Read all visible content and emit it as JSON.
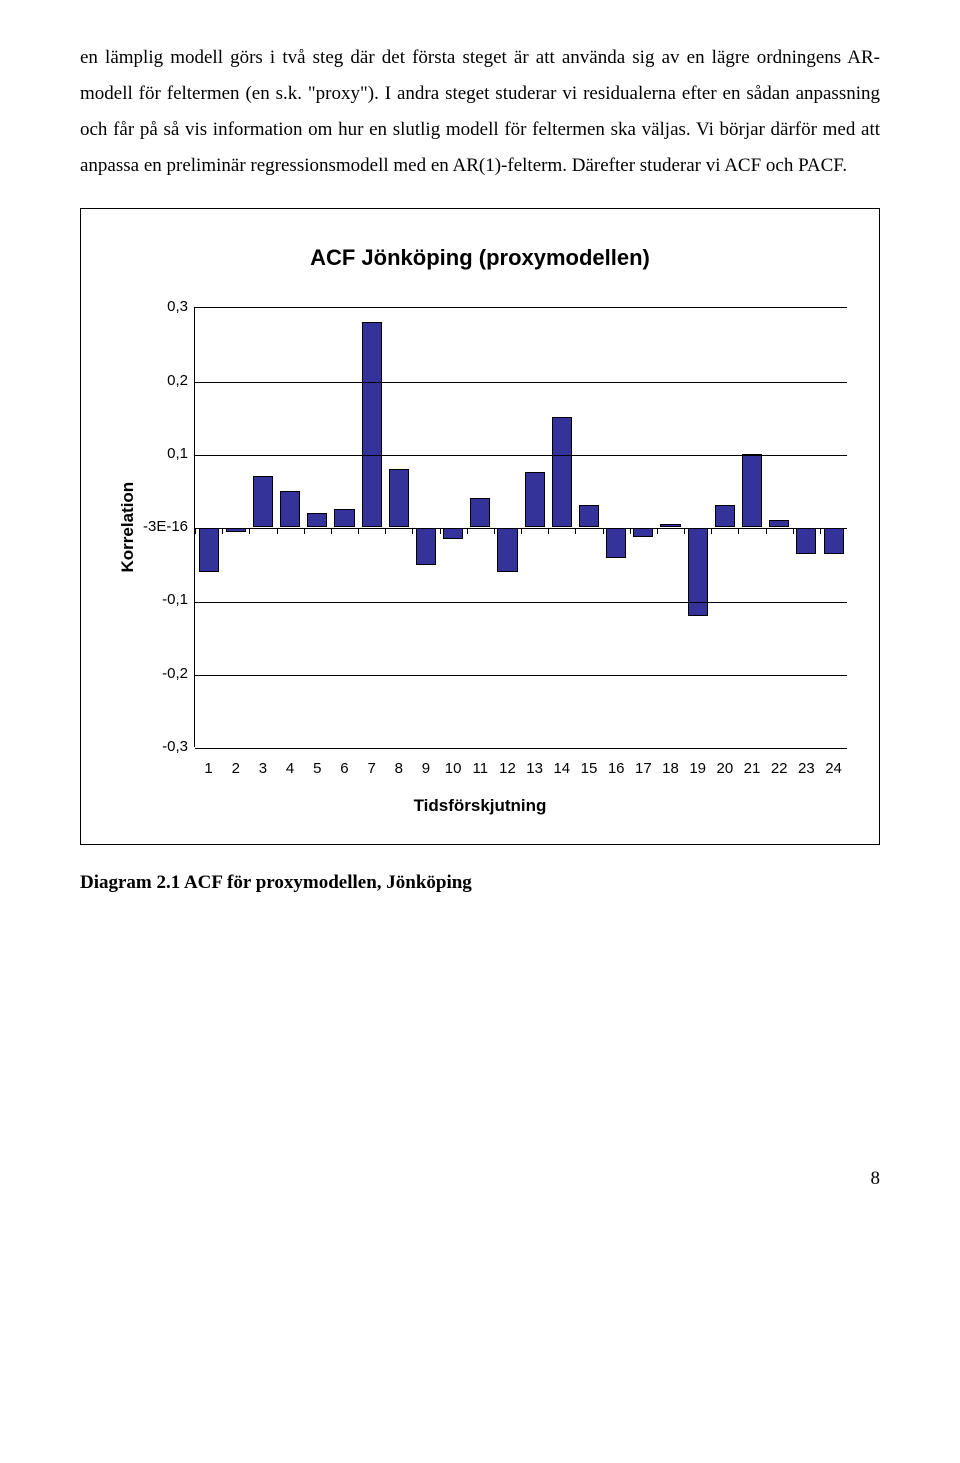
{
  "paragraphs": {
    "p1": "en lämplig modell görs i två steg där det första steget är att använda sig av en lägre ordningens AR-modell för feltermen (en s.k. \"proxy\"). I andra steget studerar vi residualerna efter en sådan anpassning och får på så vis information om hur en slutlig modell för feltermen ska väljas. Vi börjar därför med att anpassa en preliminär regressionsmodell med en AR(1)-felterm. Därefter studerar vi ACF och PACF."
  },
  "chart": {
    "type": "bar",
    "title": "ACF Jönköping (proxymodellen)",
    "xlabel": "Tidsförskjutning",
    "ylabel": "Korrelation",
    "ylim": [
      -0.3,
      0.3
    ],
    "ytick_step": 0.1,
    "yticks": [
      "0,3",
      "0,2",
      "0,1",
      "-3E-16",
      "-0,1",
      "-0,2",
      "-0,3"
    ],
    "xticks": [
      "1",
      "2",
      "3",
      "4",
      "5",
      "6",
      "7",
      "8",
      "9",
      "10",
      "11",
      "12",
      "13",
      "14",
      "15",
      "16",
      "17",
      "18",
      "19",
      "20",
      "21",
      "22",
      "23",
      "24"
    ],
    "values": [
      -0.06,
      -0.005,
      0.07,
      0.05,
      0.02,
      0.025,
      0.28,
      0.08,
      -0.05,
      -0.015,
      0.04,
      -0.06,
      0.075,
      0.15,
      0.03,
      -0.04,
      -0.012,
      0.005,
      -0.12,
      0.03,
      0.1,
      0.01,
      -0.035,
      -0.035
    ],
    "bar_color": "#333399",
    "bar_width": 0.74,
    "background_color": "#ffffff",
    "grid_color": "#000000",
    "title_fontsize": 22,
    "label_fontsize": 17,
    "tick_fontsize": 15
  },
  "caption": "Diagram 2.1 ACF för proxymodellen, Jönköping",
  "page_number": "8"
}
